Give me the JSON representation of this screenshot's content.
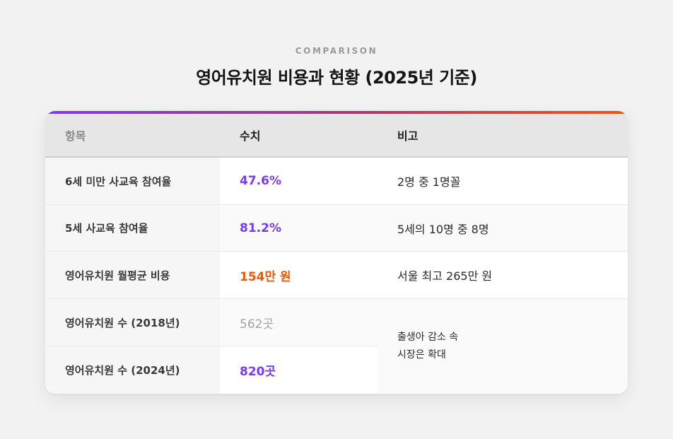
{
  "header": {
    "eyebrow": "COMPARISON",
    "title": "영어유치원 비용과 현황 (2025년 기준)"
  },
  "colors": {
    "accent_purple": "#7c3aed",
    "accent_orange": "#ea580c",
    "muted_gray": "#a3a3a3"
  },
  "table": {
    "headers": {
      "item": "항목",
      "value": "수치",
      "note": "비고"
    },
    "rows": [
      {
        "label": "6세 미만 사교육 참여율",
        "value": "47.6%",
        "value_color": "#7c3aed",
        "note": "2명 중 1명꼴"
      },
      {
        "label": "5세 사교육 참여율",
        "value": "81.2%",
        "value_color": "#7c3aed",
        "note": "5세의 10명 중 8명"
      },
      {
        "label": "영어유치원 월평균 비용",
        "value": "154만 원",
        "value_color": "#ea580c",
        "note": "서울 최고 265만 원"
      },
      {
        "label": "영어유치원 수 (2018년)",
        "value": "562곳",
        "value_color": "#a3a3a3"
      },
      {
        "label": "영어유치원 수 (2024년)",
        "value": "820곳",
        "value_color": "#7c3aed"
      }
    ],
    "merged_note": {
      "line1": "출생아 감소 속",
      "line2": "시장은 확대"
    }
  }
}
